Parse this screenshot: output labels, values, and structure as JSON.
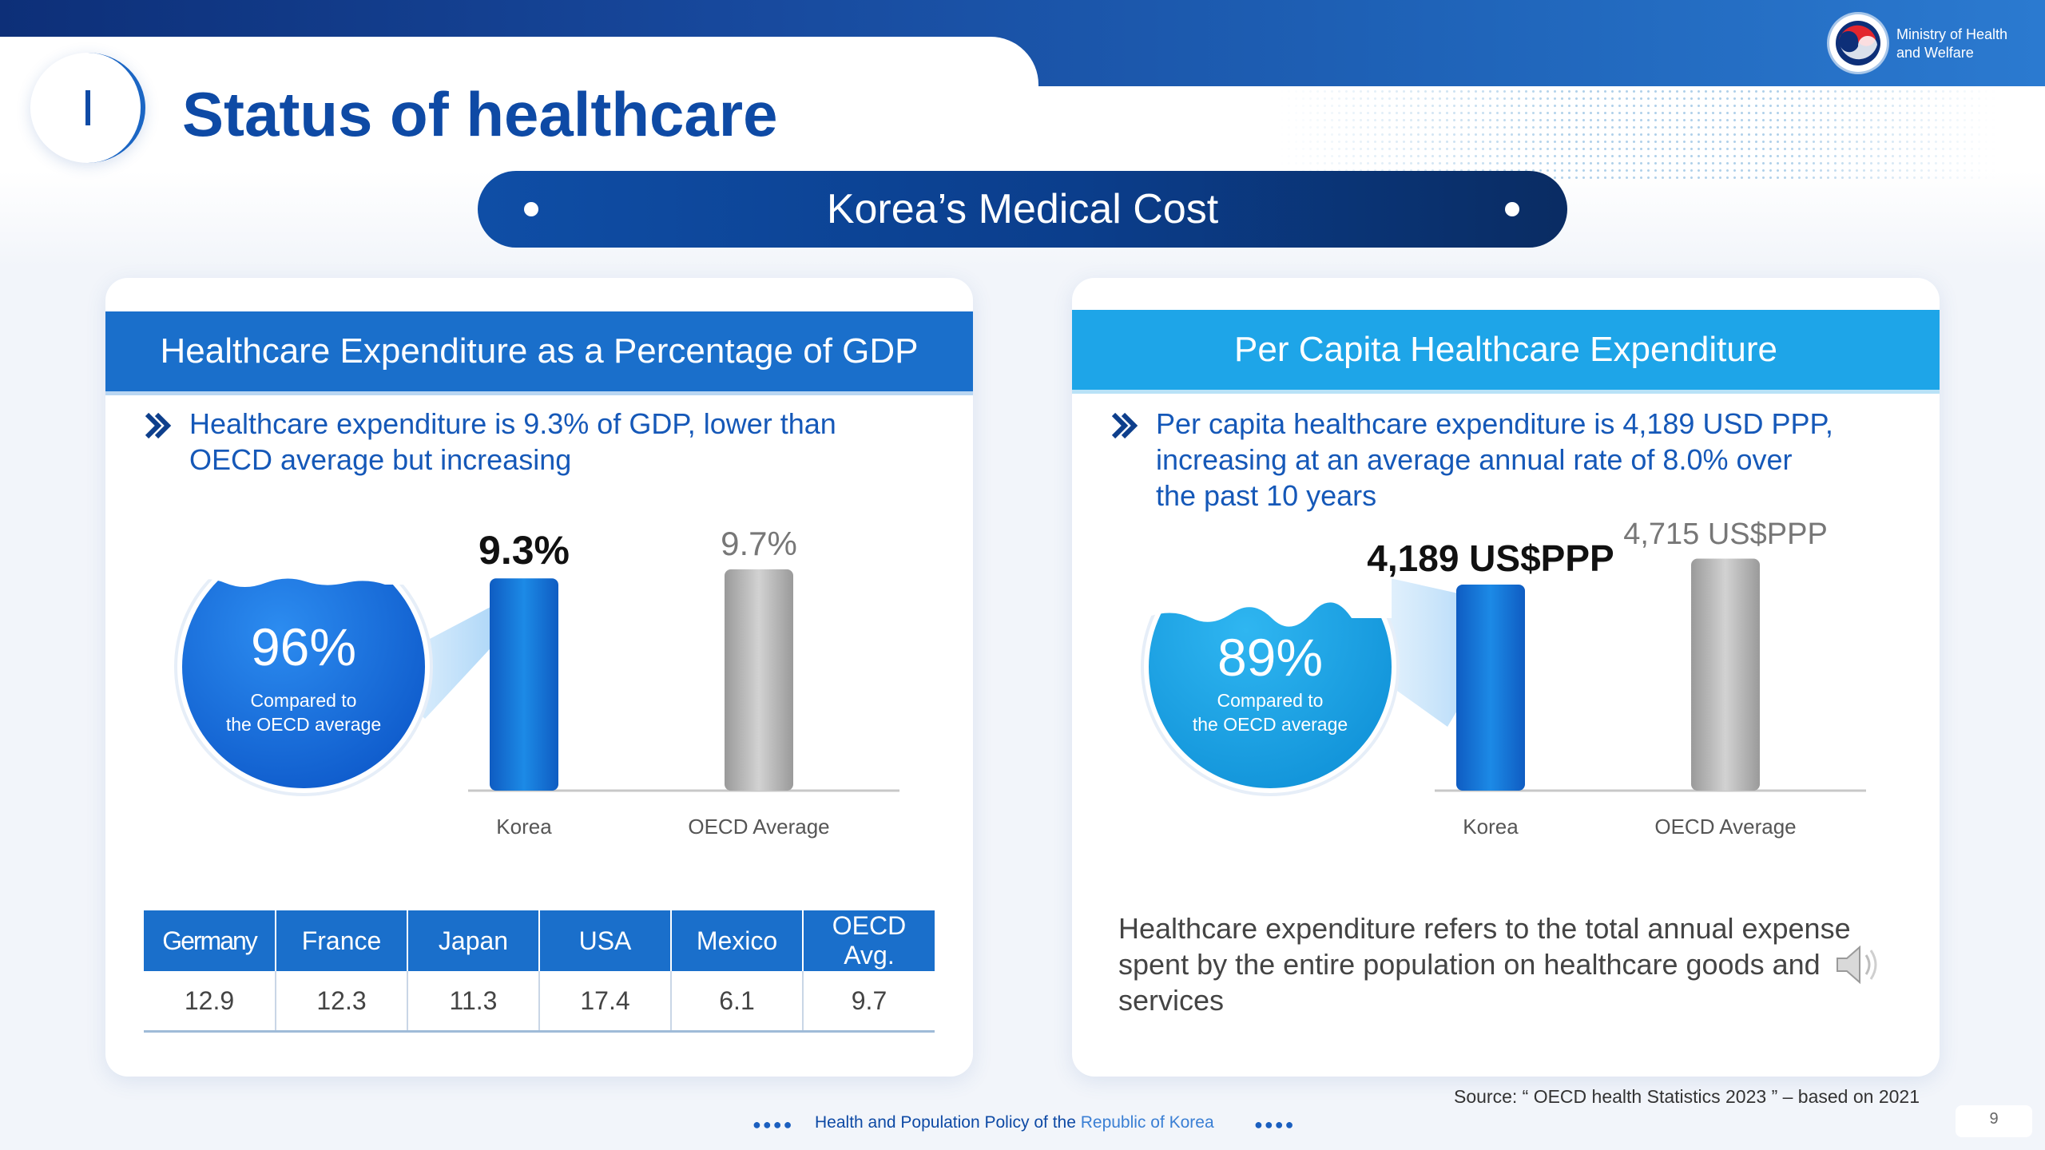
{
  "header": {
    "section_number": "I",
    "page_title": "Status of healthcare",
    "ministry_line1": "Ministry of Health",
    "ministry_line2": "and Welfare",
    "banner_title": "Korea’s Medical Cost"
  },
  "left_panel": {
    "header": "Healthcare Expenditure as a Percentage of GDP",
    "desc_line1": "Healthcare expenditure is 9.3% of GDP, lower than",
    "desc_line2": "OECD average but increasing",
    "bubble_pct": "96%",
    "bubble_sub1": "Compared to",
    "bubble_sub2": "the OECD average",
    "table": {
      "headers": [
        "Germany",
        "France",
        "Japan",
        "USA",
        "Mexico",
        "OECD Avg."
      ],
      "values": [
        "12.9",
        "12.3",
        "11.3",
        "17.4",
        "6.1",
        "9.7"
      ]
    }
  },
  "right_panel": {
    "header": "Per Capita Healthcare Expenditure",
    "desc_line1": "Per capita healthcare expenditure is 4,189 USD PPP,",
    "desc_line2": "increasing at an average annual rate of 8.0% over",
    "desc_line3": "the past 10 years",
    "bubble_pct": "89%",
    "bubble_sub1": "Compared to",
    "bubble_sub2": "the OECD average",
    "definition_line1": "Healthcare expenditure refers to the total annual expense",
    "definition_line2": "spent by the entire population on healthcare goods and",
    "definition_line3": "services"
  },
  "chart_data": [
    {
      "type": "bar",
      "categories": [
        "Korea",
        "OECD Average"
      ],
      "values": [
        9.3,
        9.7
      ],
      "data_labels": [
        "9.3%",
        "9.7%"
      ],
      "ylim": [
        0,
        10.5
      ],
      "colors": [
        "#1570d6",
        "#a9a9a9"
      ]
    },
    {
      "type": "bar",
      "categories": [
        "Korea",
        "OECD Average"
      ],
      "values": [
        4189,
        4715
      ],
      "data_labels": [
        "4,189 US$PPP",
        "4,715 US$PPP"
      ],
      "ylim": [
        0,
        4870
      ],
      "colors": [
        "#1570d6",
        "#a9a9a9"
      ]
    }
  ],
  "footer": {
    "source": "Source: “ OECD health Statistics 2023 ” – based  on 2021",
    "text_part1": "Health and Population Policy of the ",
    "text_part2": "Republic of Korea",
    "dots": "●●●●",
    "page_number": "9"
  },
  "icons": {
    "logo": "korea-taegeuk-logo",
    "bullet": "double-chevron-right-icon",
    "speaker": "speaker-icon"
  }
}
